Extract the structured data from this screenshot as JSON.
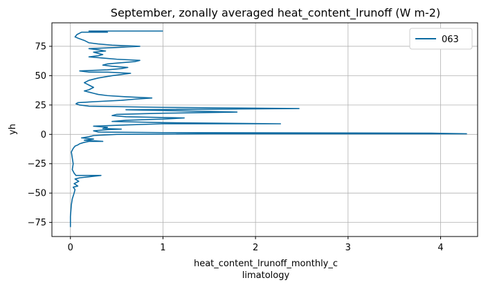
{
  "chart_data": {
    "type": "line",
    "title": "September, zonally averaged heat_content_lrunoff (W m-2)",
    "xlabel_lines": [
      "heat_content_lrunoff_monthly_c",
      "limatology"
    ],
    "ylabel": "yh",
    "xlim": [
      -0.2,
      4.4
    ],
    "ylim": [
      -87,
      95
    ],
    "xticks": [
      0,
      1,
      2,
      3,
      4
    ],
    "yticks": [
      -75,
      -50,
      -25,
      0,
      25,
      50,
      75
    ],
    "grid": true,
    "legend_position": "top-right",
    "series": [
      {
        "name": "063",
        "color": "#0b6aa1",
        "points": [
          [
            0.0,
            -79
          ],
          [
            0.0,
            -70
          ],
          [
            0.01,
            -60
          ],
          [
            0.02,
            -55
          ],
          [
            0.04,
            -50
          ],
          [
            0.05,
            -47
          ],
          [
            0.03,
            -45
          ],
          [
            0.08,
            -44
          ],
          [
            0.04,
            -42
          ],
          [
            0.09,
            -40
          ],
          [
            0.05,
            -38
          ],
          [
            0.1,
            -37
          ],
          [
            0.33,
            -35
          ],
          [
            0.06,
            -35
          ],
          [
            0.04,
            -33
          ],
          [
            0.02,
            -30
          ],
          [
            0.03,
            -25
          ],
          [
            0.02,
            -20
          ],
          [
            0.01,
            -15
          ],
          [
            0.03,
            -12
          ],
          [
            0.05,
            -10
          ],
          [
            0.08,
            -9
          ],
          [
            0.1,
            -8
          ],
          [
            0.14,
            -7
          ],
          [
            0.2,
            -6
          ],
          [
            0.35,
            -6
          ],
          [
            0.15,
            -5
          ],
          [
            0.25,
            -4
          ],
          [
            0.12,
            -3
          ],
          [
            0.2,
            -2
          ],
          [
            0.25,
            -1
          ],
          [
            0.5,
            0
          ],
          [
            1.5,
            0.5
          ],
          [
            4.28,
            0.5
          ],
          [
            3.9,
            1
          ],
          [
            1.0,
            1.5
          ],
          [
            0.3,
            2
          ],
          [
            0.25,
            3
          ],
          [
            0.4,
            4
          ],
          [
            0.55,
            4.5
          ],
          [
            0.35,
            5
          ],
          [
            0.4,
            6
          ],
          [
            0.25,
            7
          ],
          [
            0.6,
            8
          ],
          [
            1.0,
            9
          ],
          [
            2.27,
            9
          ],
          [
            1.0,
            10
          ],
          [
            0.45,
            11
          ],
          [
            0.6,
            12
          ],
          [
            1.0,
            13
          ],
          [
            1.23,
            14
          ],
          [
            0.6,
            15
          ],
          [
            0.45,
            16
          ],
          [
            0.5,
            17
          ],
          [
            1.0,
            18
          ],
          [
            1.8,
            19
          ],
          [
            1.2,
            20
          ],
          [
            0.6,
            21
          ],
          [
            2.47,
            22
          ],
          [
            1.0,
            23
          ],
          [
            0.2,
            24
          ],
          [
            0.1,
            25
          ],
          [
            0.06,
            26
          ],
          [
            0.08,
            27
          ],
          [
            0.3,
            28
          ],
          [
            0.55,
            29
          ],
          [
            0.7,
            30
          ],
          [
            0.88,
            31
          ],
          [
            0.6,
            32
          ],
          [
            0.4,
            33
          ],
          [
            0.3,
            34
          ],
          [
            0.25,
            35
          ],
          [
            0.2,
            36
          ],
          [
            0.15,
            37
          ],
          [
            0.2,
            38
          ],
          [
            0.25,
            40
          ],
          [
            0.2,
            42
          ],
          [
            0.15,
            44
          ],
          [
            0.2,
            46
          ],
          [
            0.3,
            48
          ],
          [
            0.45,
            50
          ],
          [
            0.55,
            51
          ],
          [
            0.65,
            52
          ],
          [
            0.4,
            53
          ],
          [
            0.2,
            53
          ],
          [
            0.1,
            54
          ],
          [
            0.4,
            55
          ],
          [
            0.55,
            56
          ],
          [
            0.62,
            57
          ],
          [
            0.45,
            58
          ],
          [
            0.35,
            59
          ],
          [
            0.4,
            60
          ],
          [
            0.55,
            61
          ],
          [
            0.7,
            62
          ],
          [
            0.75,
            63
          ],
          [
            0.5,
            64
          ],
          [
            0.35,
            65
          ],
          [
            0.2,
            66
          ],
          [
            0.3,
            67
          ],
          [
            0.35,
            68
          ],
          [
            0.25,
            70
          ],
          [
            0.38,
            71
          ],
          [
            0.3,
            72
          ],
          [
            0.2,
            73
          ],
          [
            0.5,
            74
          ],
          [
            0.75,
            75
          ],
          [
            0.45,
            76
          ],
          [
            0.3,
            77
          ],
          [
            0.2,
            78
          ],
          [
            0.15,
            80
          ],
          [
            0.08,
            82
          ],
          [
            0.05,
            83
          ],
          [
            0.07,
            85
          ],
          [
            0.12,
            87
          ],
          [
            0.4,
            87
          ],
          [
            0.2,
            88
          ],
          [
            1.0,
            88
          ]
        ]
      }
    ]
  }
}
